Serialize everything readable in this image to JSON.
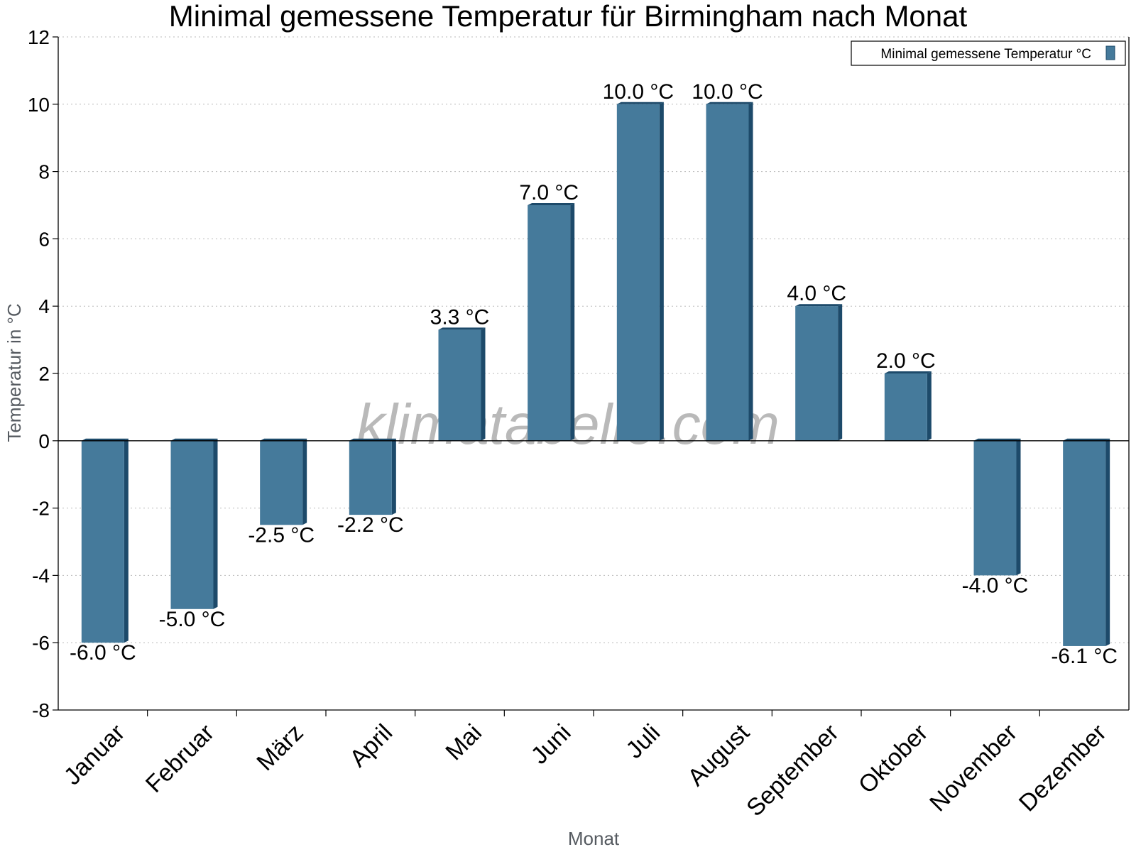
{
  "chart_data": {
    "type": "bar",
    "title": "Minimal gemessene Temperatur für Birmingham nach Monat",
    "xlabel": "Monat",
    "ylabel": "Temperatur in °C",
    "categories": [
      "Januar",
      "Februar",
      "März",
      "April",
      "Mai",
      "Juni",
      "Juli",
      "August",
      "September",
      "Oktober",
      "November",
      "Dezember"
    ],
    "series": [
      {
        "name": "Minimal gemessene Temperatur °C",
        "values": [
          -6.0,
          -5.0,
          -2.5,
          -2.2,
          3.3,
          7.0,
          10.0,
          10.0,
          4.0,
          2.0,
          -4.0,
          -6.1
        ],
        "color": "#457a9b",
        "side_color": "#1d4a6a"
      }
    ],
    "value_labels": [
      "-6.0 °C",
      "-5.0 °C",
      "-2.5 °C",
      "-2.2 °C",
      "3.3 °C",
      "7.0 °C",
      "10.0 °C",
      "10.0 °C",
      "4.0 °C",
      "2.0 °C",
      "-4.0 °C",
      "-6.1 °C"
    ],
    "ylim": [
      -8,
      12
    ],
    "yticks": [
      -8,
      -6,
      -4,
      -2,
      0,
      2,
      4,
      6,
      8,
      10,
      12
    ],
    "grid": true,
    "legend_position": "top-right",
    "watermark": "klimatabelle.com"
  }
}
